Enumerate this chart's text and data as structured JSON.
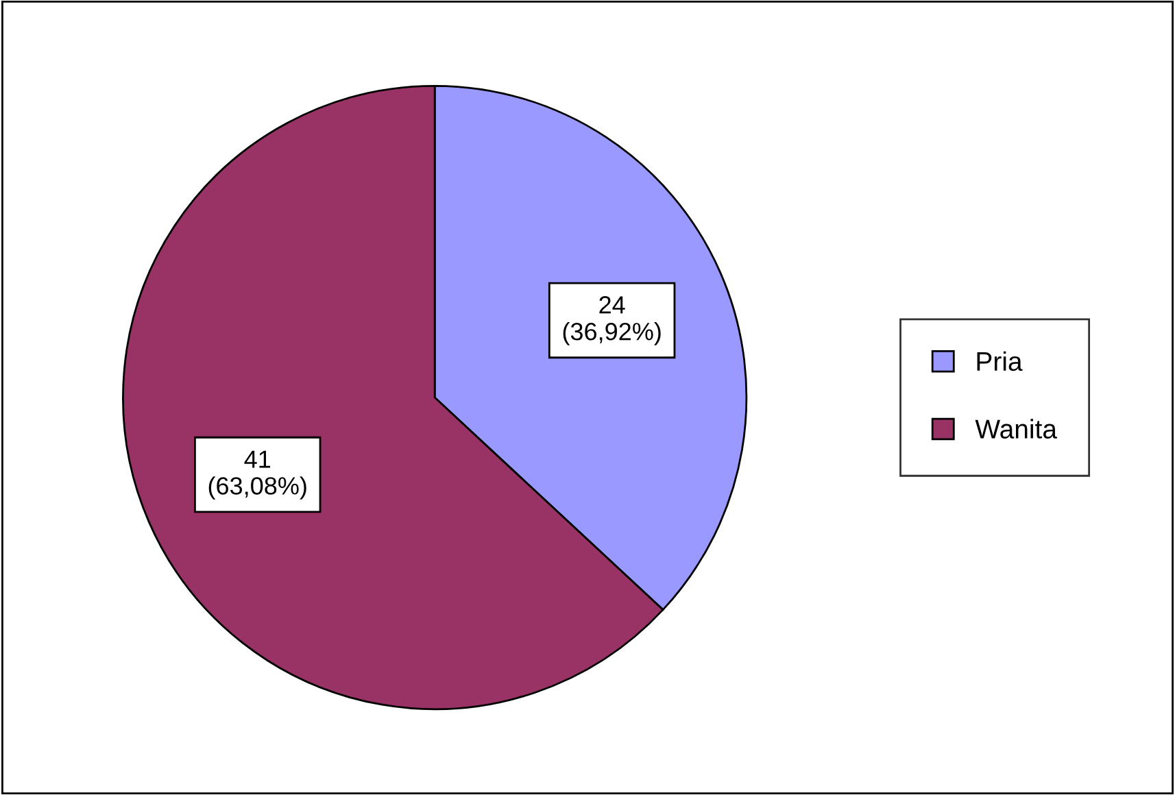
{
  "chart_data": {
    "type": "pie",
    "categories": [
      "Pria",
      "Wanita"
    ],
    "values": [
      24,
      41
    ],
    "colors": [
      "#9999ff",
      "#993366"
    ],
    "value_labels": [
      "24\n(36,92%)",
      "41\n(63,08%)"
    ],
    "legend": "right"
  }
}
